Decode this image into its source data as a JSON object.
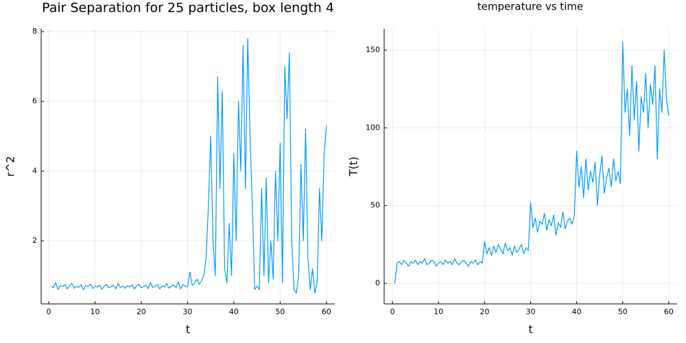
{
  "chart_data": [
    {
      "type": "line",
      "title": "Pair Separation for 25 particles, box length 4",
      "xlabel": "t",
      "ylabel": "r^2",
      "xlim": [
        -1.63,
        61.8
      ],
      "ylim": [
        0.19,
        8.08
      ],
      "xticks": [
        0,
        10,
        20,
        30,
        40,
        50,
        60
      ],
      "yticks": [
        2,
        4,
        6,
        8
      ],
      "grid": true,
      "x": [
        0.5,
        1,
        1.5,
        2,
        2.5,
        3,
        3.5,
        4,
        4.5,
        5,
        5.5,
        6,
        6.5,
        7,
        7.5,
        8,
        8.5,
        9,
        9.5,
        10,
        10.5,
        11,
        11.5,
        12,
        12.5,
        13,
        13.5,
        14,
        14.5,
        15,
        15.5,
        16,
        16.5,
        17,
        17.5,
        18,
        18.5,
        19,
        19.5,
        20,
        20.5,
        21,
        21.5,
        22,
        22.5,
        23,
        23.5,
        24,
        24.5,
        25,
        25.5,
        26,
        26.5,
        27,
        27.5,
        28,
        28.5,
        29,
        29.5,
        30,
        30.5,
        31,
        31.5,
        32,
        32.5,
        33,
        33.5,
        34,
        34.5,
        35,
        35.5,
        36,
        36.5,
        37,
        37.5,
        38,
        38.5,
        39,
        39.5,
        40,
        40.5,
        41,
        41.5,
        42,
        42.5,
        43,
        43.5,
        44,
        44.5,
        45,
        45.5,
        46,
        46.5,
        47,
        47.5,
        48,
        48.5,
        49,
        49.5,
        50,
        50.5,
        51,
        51.5,
        52,
        52.5,
        53,
        53.5,
        54,
        54.5,
        55,
        55.5,
        56,
        56.5,
        57,
        57.5,
        58,
        58.5,
        59,
        59.5,
        60
      ],
      "series": [
        {
          "name": "y1",
          "color": "#009af9",
          "values": [
            0.7,
            0.65,
            0.8,
            0.6,
            0.72,
            0.68,
            0.75,
            0.62,
            0.7,
            0.78,
            0.64,
            0.7,
            0.66,
            0.74,
            0.6,
            0.72,
            0.68,
            0.76,
            0.63,
            0.7,
            0.67,
            0.73,
            0.61,
            0.7,
            0.75,
            0.65,
            0.69,
            0.72,
            0.62,
            0.78,
            0.66,
            0.7,
            0.64,
            0.71,
            0.68,
            0.74,
            0.62,
            0.7,
            0.76,
            0.65,
            0.69,
            0.72,
            0.63,
            0.8,
            0.66,
            0.7,
            0.74,
            0.62,
            0.71,
            0.68,
            0.77,
            0.64,
            0.7,
            0.73,
            0.66,
            0.82,
            0.62,
            0.75,
            0.7,
            0.68,
            1.1,
            0.72,
            0.78,
            0.9,
            0.75,
            0.85,
            1.0,
            1.5,
            3.0,
            5.0,
            2.0,
            1.0,
            6.7,
            3.5,
            6.3,
            1.2,
            0.8,
            2.5,
            1.0,
            4.5,
            2.0,
            6.0,
            4.0,
            7.6,
            3.5,
            7.8,
            5.0,
            3.0,
            0.6,
            0.7,
            0.6,
            3.5,
            1.0,
            3.8,
            0.8,
            2.0,
            0.9,
            4.0,
            2.0,
            4.8,
            0.8,
            7.0,
            5.5,
            7.4,
            2.0,
            0.6,
            0.5,
            1.0,
            4.2,
            2.0,
            5.2,
            1.5,
            0.6,
            1.2,
            0.5,
            0.8,
            3.5,
            2.0,
            4.5,
            5.3
          ]
        }
      ]
    },
    {
      "type": "line",
      "title": "temperature vs time",
      "xlabel": "t",
      "ylabel": "T(t)",
      "xlim": [
        -1.8,
        61.8
      ],
      "ylim": [
        -13.2,
        163.7
      ],
      "xticks": [
        0,
        10,
        20,
        30,
        40,
        50,
        60
      ],
      "yticks": [
        0,
        50,
        100,
        150
      ],
      "grid": true,
      "x": [
        0.5,
        1,
        1.5,
        2,
        2.5,
        3,
        3.5,
        4,
        4.5,
        5,
        5.5,
        6,
        6.5,
        7,
        7.5,
        8,
        8.5,
        9,
        9.5,
        10,
        10.5,
        11,
        11.5,
        12,
        12.5,
        13,
        13.5,
        14,
        14.5,
        15,
        15.5,
        16,
        16.5,
        17,
        17.5,
        18,
        18.5,
        19,
        19.5,
        20,
        20.5,
        21,
        21.5,
        22,
        22.5,
        23,
        23.5,
        24,
        24.5,
        25,
        25.5,
        26,
        26.5,
        27,
        27.5,
        28,
        28.5,
        29,
        29.5,
        30,
        30.5,
        31,
        31.5,
        32,
        32.5,
        33,
        33.5,
        34,
        34.5,
        35,
        35.5,
        36,
        36.5,
        37,
        37.5,
        38,
        38.5,
        39,
        39.5,
        40,
        40.5,
        41,
        41.5,
        42,
        42.5,
        43,
        43.5,
        44,
        44.5,
        45,
        45.5,
        46,
        46.5,
        47,
        47.5,
        48,
        48.5,
        49,
        49.5,
        50,
        50.5,
        51,
        51.5,
        52,
        52.5,
        53,
        53.5,
        54,
        54.5,
        55,
        55.5,
        56,
        56.5,
        57,
        57.5,
        58,
        58.5,
        59,
        59.5,
        60
      ],
      "series": [
        {
          "name": "y1",
          "color": "#009af9",
          "values": [
            0,
            13,
            14,
            12,
            15,
            13,
            11,
            14,
            13,
            15,
            12,
            14,
            13,
            16,
            12,
            13,
            15,
            14,
            11,
            13,
            14,
            12,
            15,
            13,
            14,
            12,
            16,
            13,
            12,
            14,
            15,
            13,
            11,
            14,
            13,
            15,
            12,
            14,
            13,
            27,
            19,
            23,
            18,
            24,
            20,
            25,
            22,
            19,
            26,
            21,
            23,
            18,
            24,
            20,
            22,
            25,
            19,
            23,
            21,
            52,
            36,
            42,
            33,
            40,
            38,
            45,
            34,
            41,
            37,
            44,
            31,
            39,
            36,
            46,
            35,
            40,
            42,
            38,
            44,
            85,
            62,
            75,
            55,
            80,
            60,
            72,
            65,
            78,
            50,
            70,
            82,
            58,
            68,
            74,
            62,
            80,
            66,
            72,
            64,
            155,
            110,
            125,
            95,
            140,
            105,
            130,
            85,
            120,
            110,
            135,
            100,
            128,
            115,
            140,
            80,
            125,
            110,
            150,
            118,
            108
          ]
        }
      ]
    }
  ]
}
